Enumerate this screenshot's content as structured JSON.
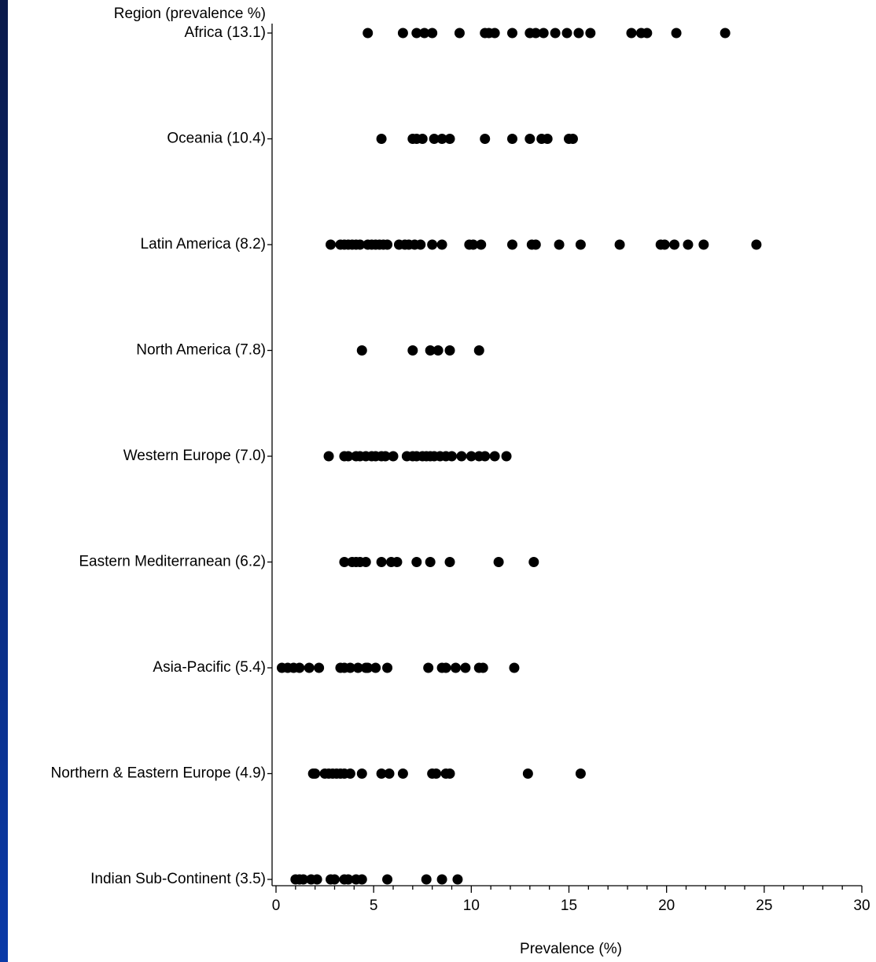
{
  "chart_data": {
    "type": "strip",
    "y_title": "Region (prevalence %)",
    "x_label": "Prevalence (%)",
    "categories": [
      "Africa (13.1)",
      "Oceania (10.4)",
      "Latin America (8.2)",
      "North America (7.8)",
      "Western Europe (7.0)",
      "Eastern Mediterranean (6.2)",
      "Asia-Pacific (5.4)",
      "Northern & Eastern Europe (4.9)",
      "Indian Sub-Continent (3.5)"
    ],
    "values": [
      [
        4.7,
        6.5,
        7.2,
        7.6,
        8.0,
        9.4,
        10.7,
        10.9,
        11.2,
        12.1,
        13.0,
        13.3,
        13.7,
        14.3,
        14.9,
        15.5,
        16.1,
        18.2,
        18.7,
        19.0,
        20.5,
        23.0
      ],
      [
        5.4,
        7.0,
        7.2,
        7.5,
        8.1,
        8.5,
        8.9,
        10.7,
        12.1,
        13.0,
        13.6,
        13.9,
        15.0,
        15.2
      ],
      [
        2.8,
        3.3,
        3.5,
        3.7,
        3.9,
        4.1,
        4.3,
        4.7,
        4.9,
        5.1,
        5.3,
        5.5,
        5.7,
        6.3,
        6.6,
        6.8,
        7.1,
        7.4,
        8.0,
        8.5,
        9.9,
        10.1,
        10.5,
        12.1,
        13.1,
        13.3,
        14.5,
        15.6,
        17.6,
        19.7,
        19.9,
        20.4,
        21.1,
        21.9,
        24.6
      ],
      [
        4.4,
        7.0,
        7.9,
        8.3,
        8.9,
        10.4
      ],
      [
        2.7,
        3.5,
        3.7,
        4.1,
        4.3,
        4.6,
        4.9,
        5.1,
        5.4,
        5.6,
        6.0,
        6.7,
        7.0,
        7.2,
        7.5,
        7.7,
        7.9,
        8.1,
        8.4,
        8.7,
        9.0,
        9.5,
        10.0,
        10.4,
        10.7,
        11.2,
        11.8
      ],
      [
        3.5,
        3.9,
        4.1,
        4.3,
        4.6,
        5.4,
        5.9,
        6.2,
        7.2,
        7.9,
        8.9,
        11.4,
        13.2
      ],
      [
        0.3,
        0.6,
        0.9,
        1.2,
        1.7,
        2.2,
        3.3,
        3.5,
        3.8,
        4.2,
        4.6,
        4.7,
        5.1,
        5.7,
        7.8,
        8.5,
        8.7,
        9.2,
        9.7,
        10.4,
        10.6,
        12.2
      ],
      [
        1.9,
        2.0,
        2.5,
        2.7,
        2.9,
        3.1,
        3.3,
        3.5,
        3.8,
        4.4,
        5.4,
        5.8,
        6.5,
        8.0,
        8.2,
        8.7,
        8.9,
        12.9,
        15.6
      ],
      [
        1.0,
        1.2,
        1.4,
        1.8,
        2.1,
        2.8,
        3.0,
        3.5,
        3.7,
        4.1,
        4.4,
        5.7,
        7.7,
        8.5,
        9.3
      ]
    ],
    "color": "#000000",
    "xlim": [
      0,
      30
    ],
    "xticks": [
      0,
      5,
      10,
      15,
      20,
      25,
      30
    ],
    "xminorticks": [
      1,
      2,
      3,
      4,
      6,
      7,
      8,
      9,
      11,
      12,
      13,
      14,
      16,
      17,
      18,
      19,
      21,
      22,
      23,
      24,
      26,
      27,
      28,
      29
    ]
  }
}
